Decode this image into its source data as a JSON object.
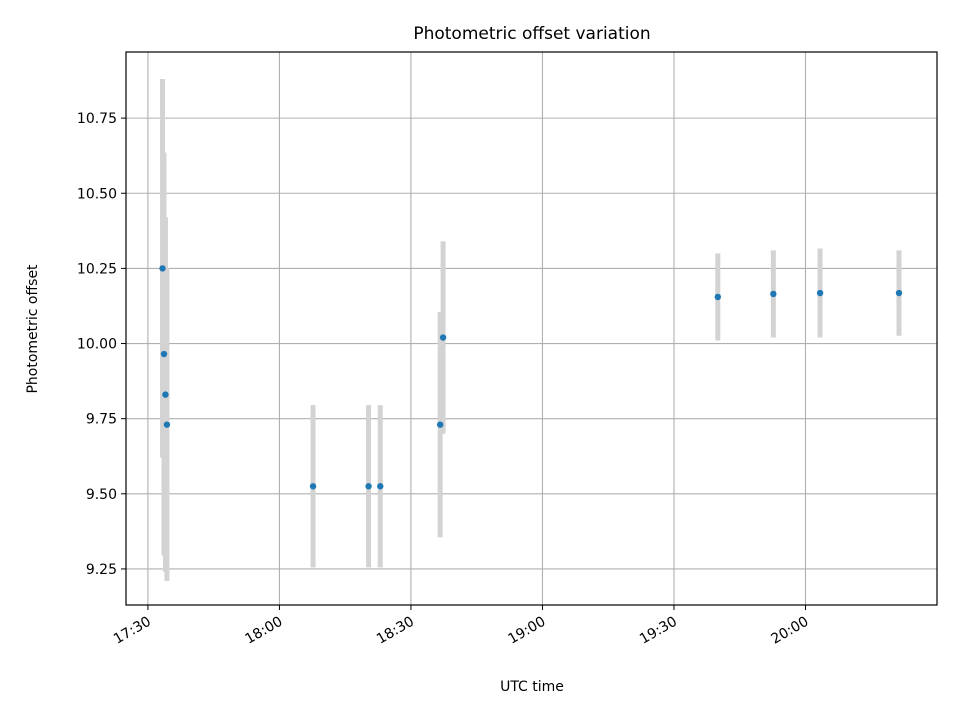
{
  "chart_data": {
    "type": "scatter",
    "title": "Photometric offset variation",
    "xlabel": "UTC time",
    "ylabel": "Photometric offset",
    "grid": true,
    "xlim": [
      "17:25",
      "20:30"
    ],
    "ylim": [
      9.13,
      10.97
    ],
    "x_ticks": [
      "17:30",
      "18:00",
      "18:30",
      "19:00",
      "19:30",
      "20:00"
    ],
    "y_ticks": [
      "9.25",
      "9.50",
      "9.75",
      "10.00",
      "10.25",
      "10.50",
      "10.75"
    ],
    "colors": {
      "points": "#1f77b4",
      "errorbars": "#d3d3d3",
      "grid": "#b0b0b0"
    },
    "series": [
      {
        "points": [
          {
            "x": "17:33:20",
            "y": 10.25,
            "yerr": 0.63
          },
          {
            "x": "17:33:40",
            "y": 9.965,
            "yerr": 0.67
          },
          {
            "x": "17:34:00",
            "y": 9.83,
            "yerr": 0.59
          },
          {
            "x": "17:34:20",
            "y": 9.73,
            "yerr": 0.52
          },
          {
            "x": "18:07:40",
            "y": 9.525,
            "yerr": 0.27
          },
          {
            "x": "18:20:20",
            "y": 9.525,
            "yerr": 0.27
          },
          {
            "x": "18:23:00",
            "y": 9.525,
            "yerr": 0.27
          },
          {
            "x": "18:36:40",
            "y": 9.73,
            "yerr": 0.375
          },
          {
            "x": "18:37:20",
            "y": 10.02,
            "yerr": 0.32
          },
          {
            "x": "19:40:00",
            "y": 10.155,
            "yerr": 0.145
          },
          {
            "x": "19:52:40",
            "y": 10.165,
            "yerr": 0.145
          },
          {
            "x": "20:03:20",
            "y": 10.168,
            "yerr": 0.148
          },
          {
            "x": "20:21:20",
            "y": 10.168,
            "yerr": 0.142
          }
        ]
      }
    ]
  }
}
